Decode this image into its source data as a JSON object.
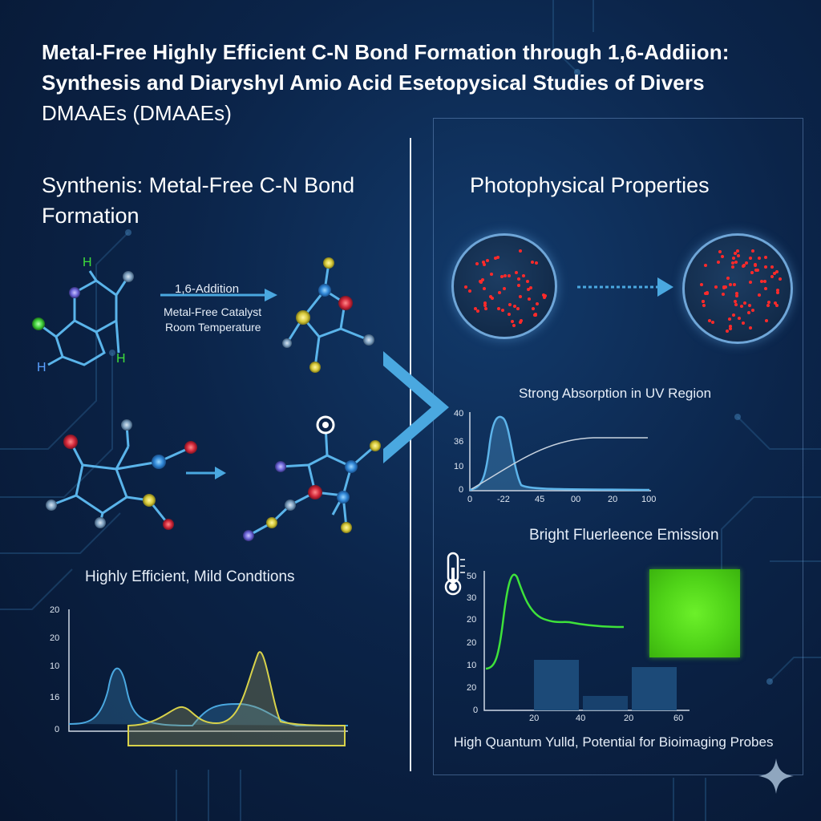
{
  "title": {
    "line1": "Metal-Free Highly Efficient C-N Bond Formation through 1,6-Addiion:",
    "line2": "Synthesis and Diaryshyl Amio Acid Esetopysical Studies of Divers",
    "line3": "DMAAEs (DMAAEs)"
  },
  "left": {
    "heading_line1": "Synthenis: Metal-Free C-N Bond",
    "heading_line2": "Formation",
    "arrow_label": "1,6-Addition",
    "condition1": "Metal-Free Catalyst",
    "condition2": "Room Temperature",
    "atom_h1": "H",
    "atom_h2": "H",
    "atom_h3": "H",
    "efficiency_caption": "Highly Efficient, Mild Condtions",
    "chart_ticks": [
      "20",
      "20",
      "10",
      "16",
      "0"
    ]
  },
  "right": {
    "heading": "Photophysical Properties",
    "absorption_caption": "Strong Absorption in UV Region",
    "fluorescence_caption": "Bright Fluerleence Emission",
    "quantum_caption": "High Quantum Yulld, Potential for Bioimaging Probes",
    "absorption_y_ticks": [
      "40",
      "36",
      "10",
      "0"
    ],
    "absorption_x_ticks": [
      "0",
      "-22",
      "45",
      "00",
      "20",
      "100"
    ],
    "emission_y_ticks": [
      "50",
      "30",
      "20",
      "20",
      "10",
      "20",
      "0"
    ],
    "emission_x_ticks": [
      "20",
      "40",
      "20",
      "60"
    ]
  },
  "colors": {
    "background": "#0b2449",
    "accent_blue": "#4aa8e0",
    "emission_green": "#3ee23a",
    "uv_curve": "#5db4ea",
    "yellow_peak": "#d8d24a"
  },
  "icons": [
    "thermometer-icon",
    "sparkle-icon",
    "arrow-icon",
    "chevron-right-icon"
  ]
}
